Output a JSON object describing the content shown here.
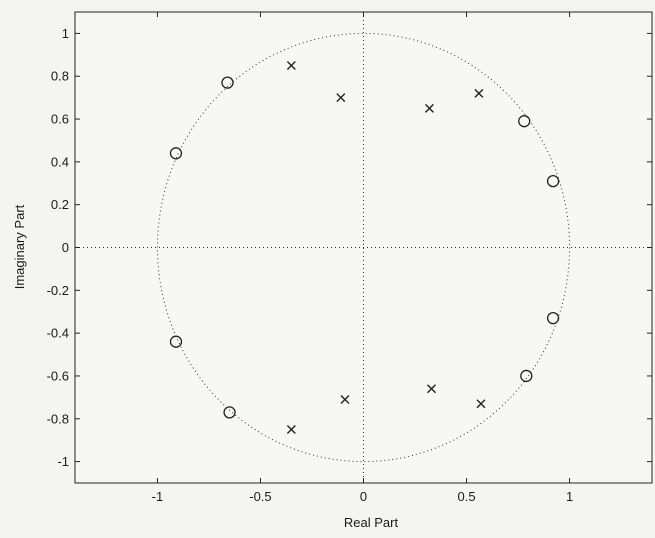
{
  "chart_data": {
    "type": "scatter",
    "title": "",
    "xlabel": "Real Part",
    "ylabel": "Imaginary Part",
    "xlim": [
      -1.4,
      1.4
    ],
    "ylim": [
      -1.1,
      1.1
    ],
    "x_ticks": [
      -1,
      -0.5,
      0,
      0.5,
      1
    ],
    "x_tick_labels": [
      "-1",
      "-0.5",
      "0",
      "0.5",
      "1"
    ],
    "y_ticks": [
      1,
      0.8,
      0.6,
      0.4,
      0.2,
      0,
      -0.2,
      -0.4,
      -0.6,
      -0.8,
      -1
    ],
    "y_tick_labels": [
      "1",
      "0.8",
      "0.6",
      "0.4",
      "0.2",
      "0",
      "-0.2",
      "-0.4",
      "-0.6",
      "-0.8",
      "-1"
    ],
    "grid": false,
    "unit_circle": true,
    "series": [
      {
        "marker": "o",
        "points": [
          {
            "x": -0.66,
            "y": 0.77
          },
          {
            "x": -0.91,
            "y": 0.44
          },
          {
            "x": -0.91,
            "y": -0.44
          },
          {
            "x": -0.65,
            "y": -0.77
          },
          {
            "x": 0.78,
            "y": 0.59
          },
          {
            "x": 0.92,
            "y": 0.31
          },
          {
            "x": 0.92,
            "y": -0.33
          },
          {
            "x": 0.79,
            "y": -0.6
          }
        ]
      },
      {
        "marker": "x",
        "points": [
          {
            "x": -0.35,
            "y": 0.85
          },
          {
            "x": -0.11,
            "y": 0.7
          },
          {
            "x": 0.32,
            "y": 0.65
          },
          {
            "x": 0.56,
            "y": 0.72
          },
          {
            "x": -0.35,
            "y": -0.85
          },
          {
            "x": -0.09,
            "y": -0.71
          },
          {
            "x": 0.33,
            "y": -0.66
          },
          {
            "x": 0.57,
            "y": -0.73
          }
        ]
      }
    ]
  }
}
